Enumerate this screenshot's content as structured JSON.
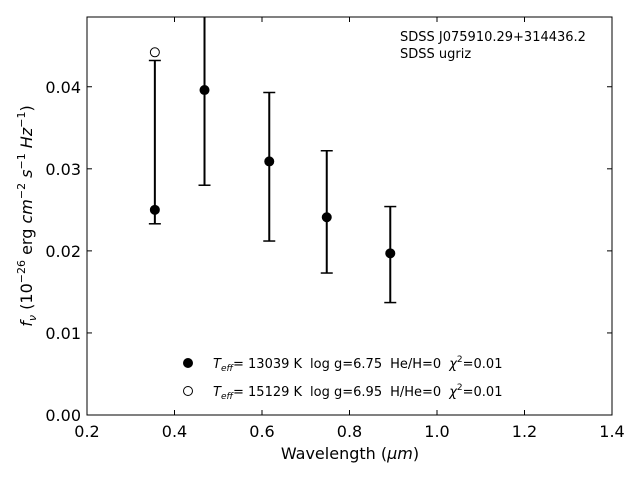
{
  "chart_data": {
    "type": "scatter",
    "annotation_lines": [
      "SDSS J075910.29+314436.2",
      "SDSS ugriz"
    ],
    "xlabel_parts": {
      "pre": "Wavelength (",
      "italic": "μm",
      "post": ")"
    },
    "ylabel_parts": {
      "f": "f",
      "sub": "ν",
      "pre": " (10",
      "exp1": "−26",
      "mid": " erg ",
      "cm": "cm",
      "exp2": "−2",
      "s": " s",
      "exp3": "−1",
      "hz": " Hz",
      "exp4": "−1",
      "post": ")"
    },
    "xlim": [
      0.2,
      1.4
    ],
    "ylim": [
      0.0,
      0.0485
    ],
    "xticks": [
      {
        "v": 0.2,
        "label": "0.2"
      },
      {
        "v": 0.4,
        "label": "0.4"
      },
      {
        "v": 0.6,
        "label": "0.6"
      },
      {
        "v": 0.8,
        "label": "0.8"
      },
      {
        "v": 1.0,
        "label": "1.0"
      },
      {
        "v": 1.2,
        "label": "1.2"
      },
      {
        "v": 1.4,
        "label": "1.4"
      }
    ],
    "yticks": [
      {
        "v": 0.0,
        "label": "0.00"
      },
      {
        "v": 0.01,
        "label": "0.01"
      },
      {
        "v": 0.02,
        "label": "0.02"
      },
      {
        "v": 0.03,
        "label": "0.03"
      },
      {
        "v": 0.04,
        "label": "0.04"
      }
    ],
    "observed": {
      "x": [
        0.3551,
        0.4686,
        0.6166,
        0.748,
        0.8932
      ],
      "y": [
        0.025,
        0.0396,
        0.0309,
        0.0241,
        0.0197
      ],
      "yerr_low": [
        0.0233,
        0.028,
        0.0212,
        0.0173,
        0.0137
      ],
      "yerr_high": [
        0.0432,
        0.049,
        0.0393,
        0.0322,
        0.0254
      ]
    },
    "series": [
      {
        "marker": "filled-circle",
        "x": [
          0.3551,
          0.4686,
          0.6166,
          0.748,
          0.8932
        ],
        "y": [
          0.025,
          0.0396,
          0.0309,
          0.0241,
          0.0197
        ]
      },
      {
        "marker": "open-circle",
        "x": [
          0.3551
        ],
        "y": [
          0.0442
        ]
      }
    ],
    "legend": [
      {
        "marker": "filled-circle",
        "teff_sym": "T",
        "teff_sub": "eff",
        "teff": "= 13039 K",
        "logg": "log g=6.75",
        "comp": "He/H=0",
        "chi_sym": "χ",
        "chi_exp": "2",
        "chi_val": "=0.01"
      },
      {
        "marker": "open-circle",
        "teff_sym": "T",
        "teff_sub": "eff",
        "teff": "= 15129 K",
        "logg": "log g=6.95",
        "comp": "H/He=0",
        "chi_sym": "χ",
        "chi_exp": "2",
        "chi_val": "=0.01"
      }
    ]
  }
}
